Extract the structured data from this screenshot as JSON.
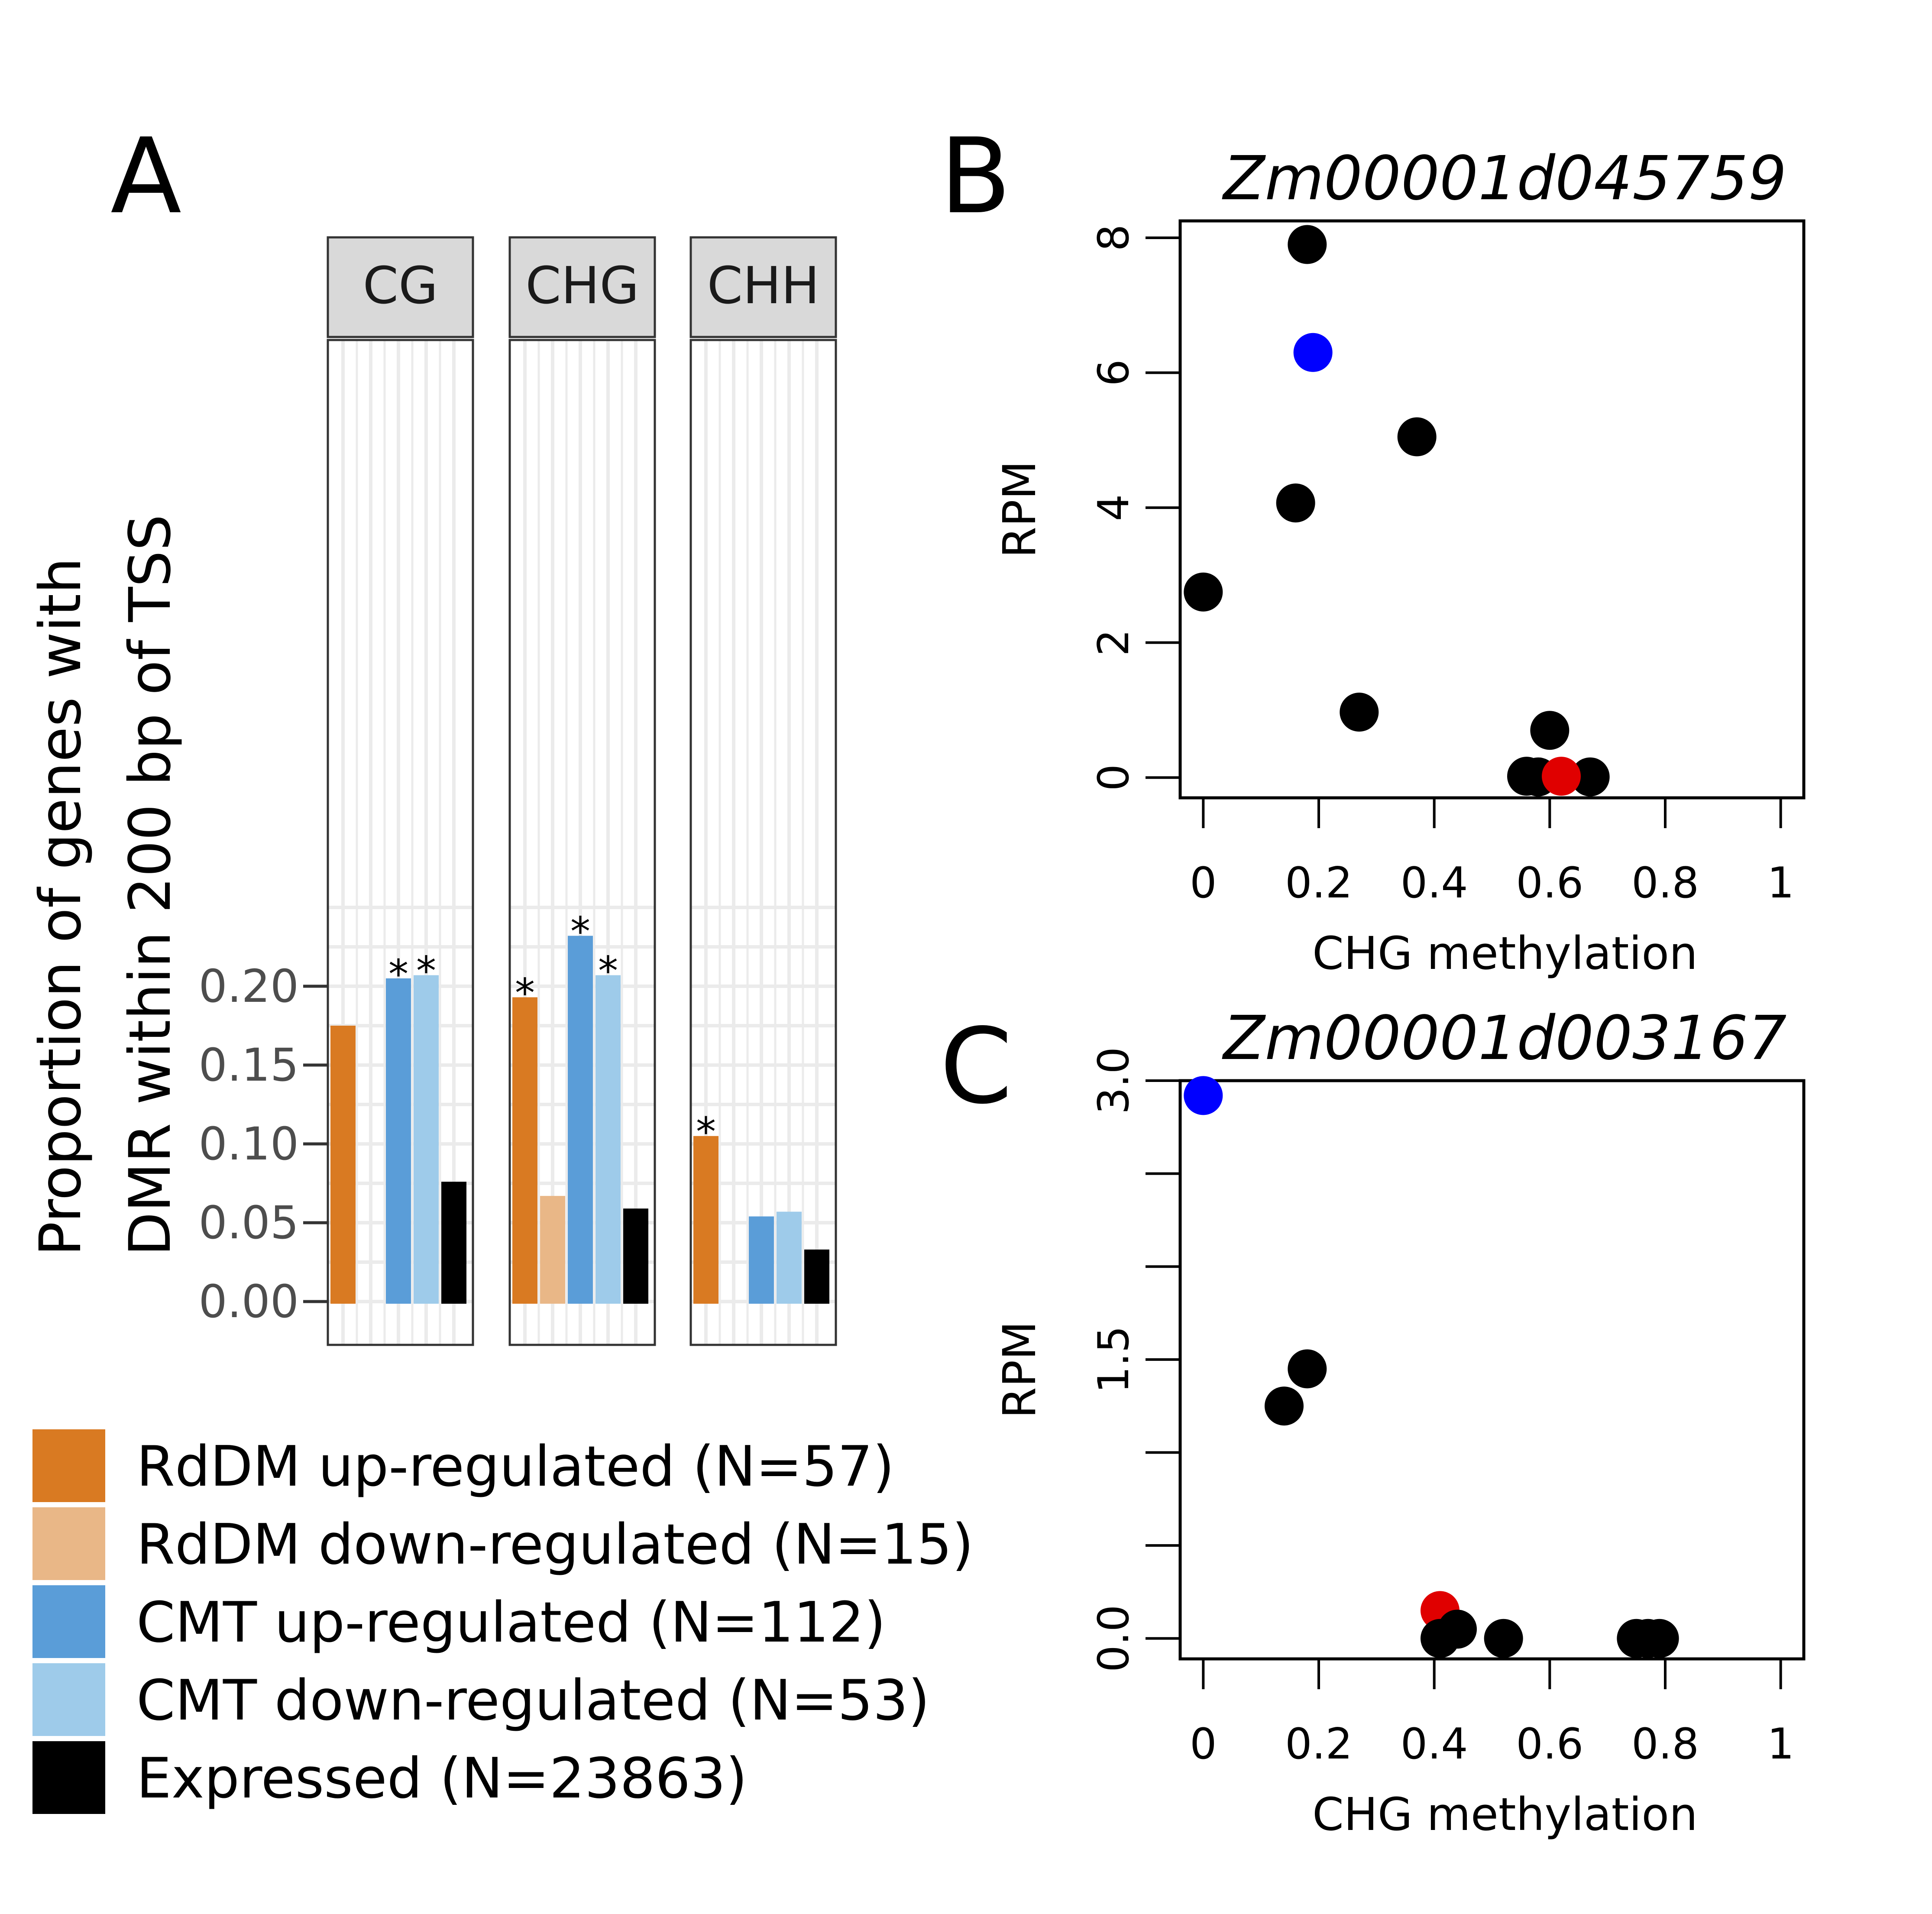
{
  "panels": {
    "a": "A",
    "b": "B",
    "c": "C"
  },
  "colors": {
    "rddm_up": "#D97A22",
    "rddm_down": "#E9B787",
    "cmt_up": "#5A9DD8",
    "cmt_down": "#9ECBEA",
    "expressed": "#000000",
    "highlight_blue": "#0000FF",
    "highlight_red": "#E00000",
    "strip_fill": "#D9D9D9",
    "grid": "#EBEBEB"
  },
  "chart_data": [
    {
      "type": "bar",
      "ylabel_line1": "Proportion  of genes with",
      "ylabel_line2": "DMR within 200 bp of TSS",
      "ylim": [
        0,
        0.25
      ],
      "yticks": [
        "0.00",
        "0.05",
        "0.10",
        "0.15",
        "0.20"
      ],
      "ytick_values": [
        0,
        0.05,
        0.1,
        0.15,
        0.2
      ],
      "facets": [
        "CG",
        "CHG",
        "CHH"
      ],
      "legend": [
        "RdDM up-regulated (N=57)",
        "RdDM down-regulated (N=15)",
        "CMT up-regulated (N=112)",
        "CMT down-regulated (N=53)",
        "Expressed (N=23863)"
      ],
      "series": [
        {
          "key": "rddm_up",
          "values": [
            0.175,
            0.193,
            0.105
          ],
          "stars": [
            "",
            "*",
            "*"
          ]
        },
        {
          "key": "rddm_down",
          "values": [
            0.0,
            0.067,
            0.0
          ],
          "stars": [
            "",
            "",
            ""
          ]
        },
        {
          "key": "cmt_up",
          "values": [
            0.205,
            0.232,
            0.054
          ],
          "stars": [
            "*",
            "*",
            ""
          ]
        },
        {
          "key": "cmt_down",
          "values": [
            0.207,
            0.207,
            0.057
          ],
          "stars": [
            "*",
            "*",
            ""
          ]
        },
        {
          "key": "expressed",
          "values": [
            0.076,
            0.059,
            0.033
          ],
          "stars": [
            "",
            "",
            ""
          ]
        }
      ]
    },
    {
      "type": "scatter",
      "title": "Zm00001d045759",
      "xlabel": "CHG methylation",
      "ylabel": "RPM",
      "xlim": [
        -0.04,
        1.04
      ],
      "ylim": [
        -0.3,
        8.25
      ],
      "xticks": [
        "0",
        "0.2",
        "0.4",
        "0.6",
        "0.8",
        "1"
      ],
      "xtick_values": [
        0,
        0.2,
        0.4,
        0.6,
        0.8,
        1.0
      ],
      "yticks": [
        "0",
        "2",
        "4",
        "6",
        "8"
      ],
      "ytick_values": [
        0,
        2,
        4,
        6,
        8
      ],
      "points": [
        {
          "x": 0.18,
          "y": 7.9,
          "color": "black"
        },
        {
          "x": 0.19,
          "y": 6.3,
          "color": "blue"
        },
        {
          "x": 0.37,
          "y": 5.05,
          "color": "black"
        },
        {
          "x": 0.16,
          "y": 4.07,
          "color": "black"
        },
        {
          "x": 0.0,
          "y": 2.75,
          "color": "black"
        },
        {
          "x": 0.27,
          "y": 0.97,
          "color": "black"
        },
        {
          "x": 0.6,
          "y": 0.7,
          "color": "black"
        },
        {
          "x": 0.56,
          "y": 0.02,
          "color": "black"
        },
        {
          "x": 0.58,
          "y": 0.01,
          "color": "black"
        },
        {
          "x": 0.67,
          "y": 0.01,
          "color": "black"
        },
        {
          "x": 0.62,
          "y": 0.02,
          "color": "red"
        }
      ]
    },
    {
      "type": "scatter",
      "title": "Zm00001d003167",
      "xlabel": "CHG methylation",
      "ylabel": "RPM",
      "xlim": [
        -0.04,
        1.04
      ],
      "ylim": [
        -0.11,
        3.0
      ],
      "xticks": [
        "0",
        "0.2",
        "0.4",
        "0.6",
        "0.8",
        "1"
      ],
      "xtick_values": [
        0,
        0.2,
        0.4,
        0.6,
        0.8,
        1.0
      ],
      "yticks": [
        "0.0",
        "1.5",
        "3.0"
      ],
      "ytick_values": [
        0,
        1.5,
        3.0
      ],
      "minor_ytick_values": [
        0.5,
        1.0,
        2.0,
        2.5
      ],
      "points": [
        {
          "x": 0.0,
          "y": 2.92,
          "color": "blue"
        },
        {
          "x": 0.18,
          "y": 1.45,
          "color": "black"
        },
        {
          "x": 0.14,
          "y": 1.25,
          "color": "black"
        },
        {
          "x": 0.41,
          "y": 0.15,
          "color": "red"
        },
        {
          "x": 0.44,
          "y": 0.05,
          "color": "black"
        },
        {
          "x": 0.41,
          "y": 0.0,
          "color": "black"
        },
        {
          "x": 0.52,
          "y": 0.0,
          "color": "black"
        },
        {
          "x": 0.75,
          "y": 0.0,
          "color": "black"
        },
        {
          "x": 0.77,
          "y": 0.0,
          "color": "black"
        },
        {
          "x": 0.79,
          "y": 0.0,
          "color": "black"
        }
      ]
    }
  ]
}
